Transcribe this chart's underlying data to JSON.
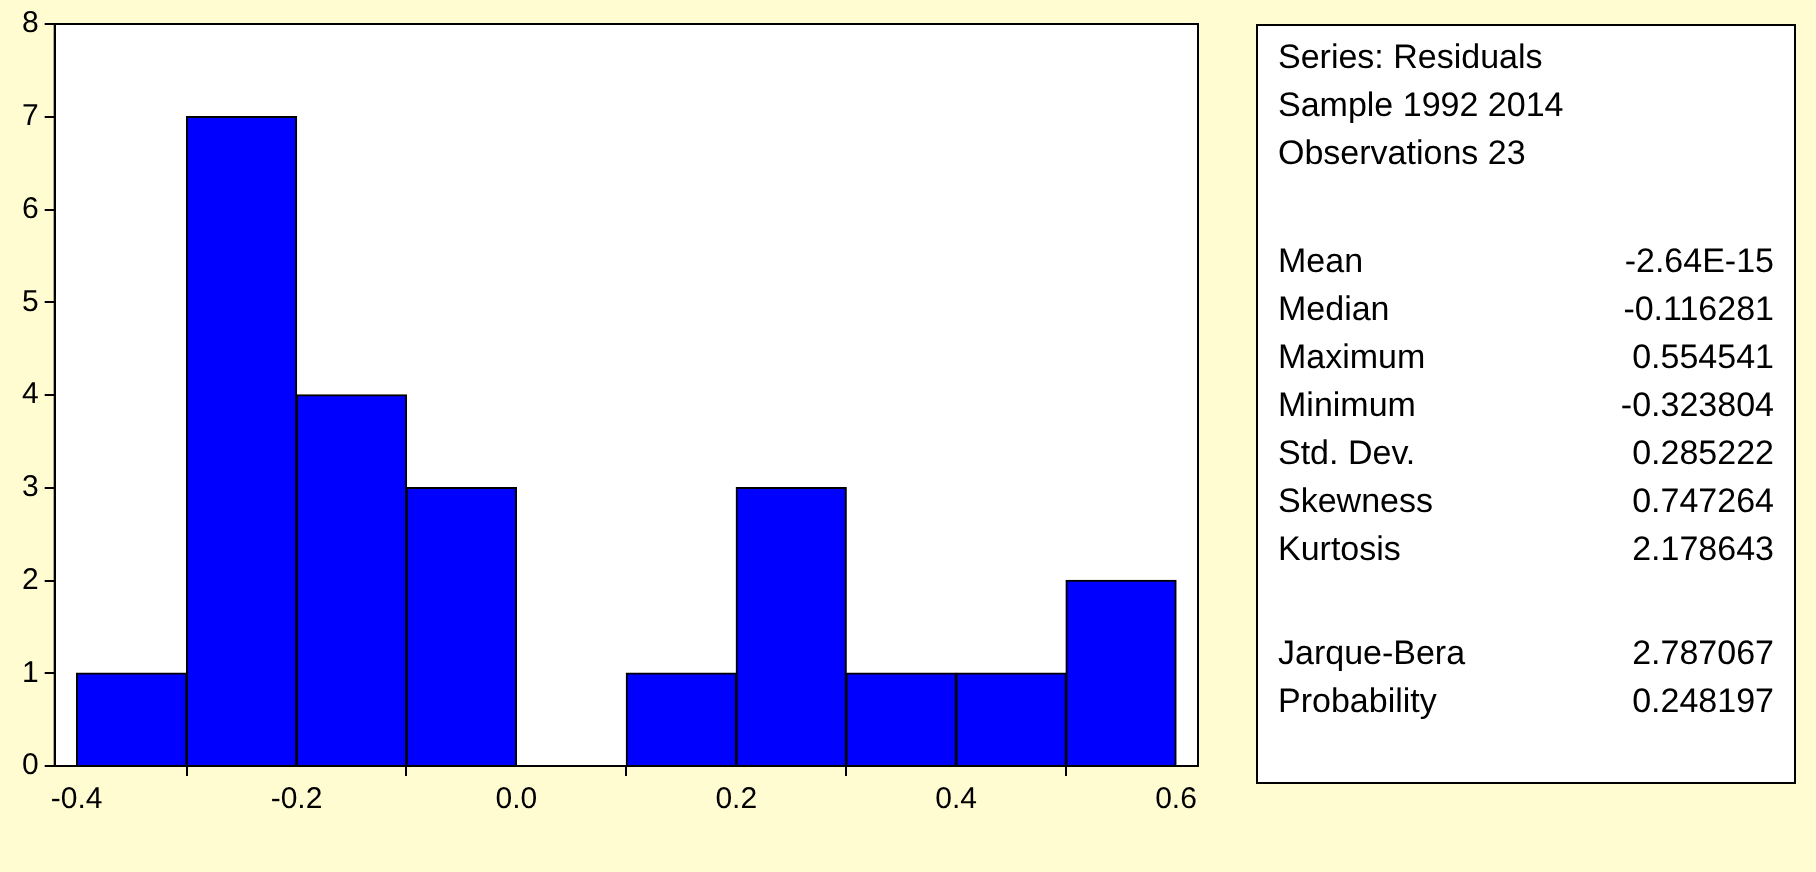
{
  "chart_data": {
    "type": "histogram",
    "bins": [
      -0.4,
      -0.3,
      -0.2,
      -0.1,
      0,
      0.1,
      0.2,
      0.3,
      0.4,
      0.5,
      0.6
    ],
    "values": [
      1,
      7,
      4,
      3,
      0,
      1,
      3,
      1,
      1,
      2
    ],
    "color": "#0000ff",
    "xlim": [
      -0.42,
      0.62
    ],
    "xticks": [
      -0.4,
      -0.2,
      {
        "value": 0,
        "label": "0.0"
      },
      0.2,
      0.4,
      0.6
    ],
    "ylim": [
      0,
      8
    ],
    "yticks": [
      0,
      1,
      2,
      3,
      4,
      5,
      6,
      7,
      8
    ],
    "grid": false,
    "legend": false,
    "annotations": [
      "Series: Residuals",
      "Sample 1992 2014",
      "Observations 23",
      "Mean",
      "-2.64E-15",
      "Median",
      "-0.116281",
      "Maximum",
      "0.554541",
      "Minimum",
      "-0.323804",
      "Std. Dev.",
      "0.285222",
      "Skewness",
      "0.747264",
      "Kurtosis",
      "2.178643",
      "Jarque-Bera",
      "2.787067",
      "Probability",
      "0.248197"
    ]
  }
}
